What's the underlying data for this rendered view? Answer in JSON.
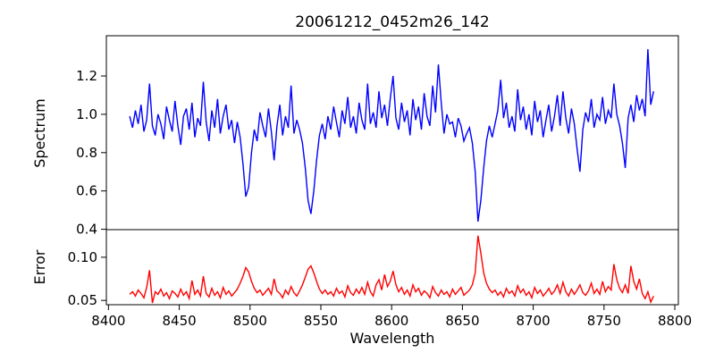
{
  "chart_data": {
    "type": "line",
    "title": "20061212_0452m26_142",
    "xlabel": "Wavelength",
    "xlim": [
      8398.5,
      8802.5
    ],
    "x_ticks": [
      8400,
      8450,
      8500,
      8550,
      8600,
      8650,
      8700,
      8750,
      8800
    ],
    "grid": false,
    "legend": "none",
    "panels": [
      {
        "name": "spectrum",
        "ylabel": "Spectrum",
        "ylim": [
          0.398,
          1.41
        ],
        "y_ticks": [
          0.4,
          0.6,
          0.8,
          1.0,
          1.2
        ],
        "y_tick_labels": [
          "0.4",
          "0.6",
          "0.8",
          "1.0",
          "1.2"
        ],
        "line_color": "#0000ff",
        "features_note": "absorption dips at 8498, 8542, 8662; emission-like spike at 8781",
        "series": {
          "x_start": 8415,
          "x_step": 2,
          "values": [
            0.99,
            0.93,
            1.02,
            0.95,
            1.05,
            0.91,
            0.97,
            1.16,
            0.94,
            0.89,
            1.0,
            0.95,
            0.87,
            1.04,
            0.97,
            0.91,
            1.07,
            0.94,
            0.84,
            0.99,
            1.03,
            0.92,
            1.06,
            0.88,
            0.98,
            0.94,
            1.17,
            0.96,
            0.86,
            1.02,
            0.93,
            1.08,
            0.9,
            0.99,
            1.05,
            0.92,
            0.97,
            0.85,
            0.96,
            0.88,
            0.74,
            0.57,
            0.62,
            0.8,
            0.92,
            0.86,
            1.01,
            0.94,
            0.88,
            1.03,
            0.91,
            0.76,
            0.94,
            1.05,
            0.89,
            0.99,
            0.93,
            1.15,
            0.9,
            0.97,
            0.92,
            0.85,
            0.72,
            0.55,
            0.48,
            0.6,
            0.76,
            0.89,
            0.95,
            0.87,
            0.99,
            0.92,
            1.04,
            0.96,
            0.88,
            1.02,
            0.95,
            1.09,
            0.93,
            0.99,
            0.9,
            1.06,
            0.97,
            0.92,
            1.16,
            0.95,
            1.01,
            0.93,
            1.12,
            0.98,
            1.05,
            0.94,
            1.08,
            1.2,
            0.98,
            0.92,
            1.06,
            0.96,
            1.02,
            0.89,
            1.08,
            0.97,
            1.04,
            0.92,
            1.11,
            0.99,
            0.94,
            1.15,
            1.01,
            1.26,
            1.06,
            0.9,
            1.0,
            0.95,
            0.96,
            0.88,
            0.98,
            0.94,
            0.86,
            0.9,
            0.93,
            0.85,
            0.7,
            0.44,
            0.55,
            0.72,
            0.86,
            0.94,
            0.88,
            0.95,
            1.02,
            1.18,
            0.98,
            1.06,
            0.93,
            0.99,
            0.91,
            1.13,
            0.97,
            1.04,
            0.92,
            1.0,
            0.89,
            1.07,
            0.96,
            1.02,
            0.88,
            0.97,
            1.05,
            0.91,
            0.99,
            1.1,
            0.94,
            1.12,
            0.98,
            0.9,
            1.03,
            0.95,
            0.82,
            0.7,
            0.92,
            1.01,
            0.96,
            1.08,
            0.93,
            1.0,
            0.97,
            1.09,
            0.95,
            1.02,
            0.98,
            1.16,
            1.0,
            0.94,
            0.85,
            0.72,
            0.98,
            1.05,
            0.96,
            1.1,
            1.02,
            1.08,
            0.99,
            1.34,
            1.05,
            1.12
          ]
        }
      },
      {
        "name": "error",
        "ylabel": "Error",
        "ylim": [
          0.045,
          0.132
        ],
        "y_ticks": [
          0.05,
          0.1
        ],
        "y_tick_labels": [
          "0.05",
          "0.10"
        ],
        "line_color": "#ff0000",
        "features_note": "baseline ~0.058 with bumps at 8498, 8543, 8601 and a spike to ~0.125 at 8661",
        "series": {
          "x_start": 8415,
          "x_step": 2,
          "values": [
            0.057,
            0.06,
            0.055,
            0.062,
            0.058,
            0.053,
            0.065,
            0.085,
            0.047,
            0.06,
            0.057,
            0.063,
            0.055,
            0.059,
            0.052,
            0.061,
            0.058,
            0.054,
            0.063,
            0.056,
            0.06,
            0.052,
            0.073,
            0.057,
            0.062,
            0.055,
            0.078,
            0.058,
            0.054,
            0.064,
            0.056,
            0.06,
            0.053,
            0.065,
            0.057,
            0.061,
            0.055,
            0.059,
            0.063,
            0.07,
            0.078,
            0.088,
            0.083,
            0.072,
            0.064,
            0.059,
            0.062,
            0.056,
            0.06,
            0.064,
            0.057,
            0.075,
            0.061,
            0.058,
            0.053,
            0.062,
            0.057,
            0.066,
            0.059,
            0.055,
            0.061,
            0.068,
            0.077,
            0.086,
            0.09,
            0.082,
            0.072,
            0.063,
            0.058,
            0.062,
            0.057,
            0.06,
            0.055,
            0.064,
            0.058,
            0.061,
            0.054,
            0.067,
            0.059,
            0.056,
            0.063,
            0.058,
            0.065,
            0.057,
            0.071,
            0.06,
            0.055,
            0.068,
            0.074,
            0.062,
            0.08,
            0.066,
            0.072,
            0.084,
            0.068,
            0.06,
            0.065,
            0.057,
            0.062,
            0.055,
            0.068,
            0.06,
            0.064,
            0.056,
            0.061,
            0.058,
            0.053,
            0.066,
            0.059,
            0.055,
            0.062,
            0.057,
            0.06,
            0.054,
            0.063,
            0.057,
            0.061,
            0.065,
            0.056,
            0.059,
            0.062,
            0.068,
            0.082,
            0.125,
            0.105,
            0.082,
            0.07,
            0.063,
            0.059,
            0.062,
            0.056,
            0.06,
            0.054,
            0.064,
            0.058,
            0.061,
            0.055,
            0.067,
            0.059,
            0.063,
            0.056,
            0.06,
            0.053,
            0.065,
            0.058,
            0.062,
            0.055,
            0.059,
            0.064,
            0.057,
            0.061,
            0.068,
            0.058,
            0.071,
            0.06,
            0.055,
            0.063,
            0.057,
            0.062,
            0.068,
            0.059,
            0.056,
            0.061,
            0.07,
            0.058,
            0.063,
            0.057,
            0.072,
            0.06,
            0.066,
            0.062,
            0.092,
            0.074,
            0.064,
            0.059,
            0.068,
            0.058,
            0.09,
            0.072,
            0.063,
            0.075,
            0.058,
            0.052,
            0.06,
            0.048,
            0.055
          ]
        }
      }
    ],
    "colors": {
      "spectrum_line": "#0000ff",
      "error_line": "#ff0000",
      "axis": "#000000",
      "background": "#ffffff"
    }
  }
}
